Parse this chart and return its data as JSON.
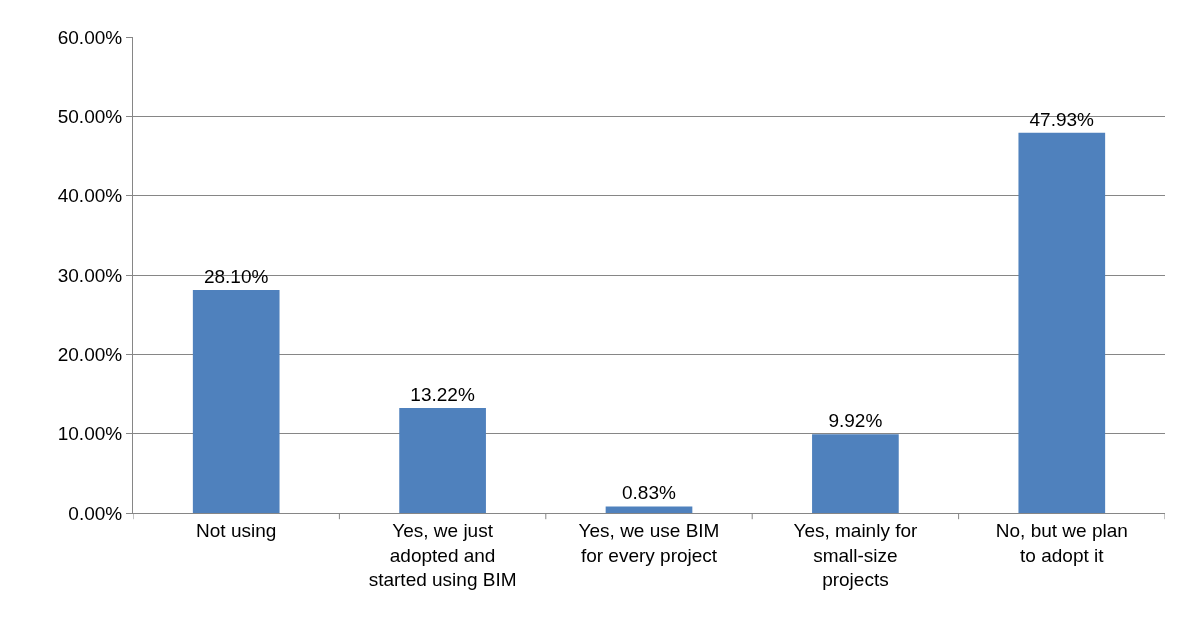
{
  "chart_data": {
    "type": "bar",
    "categories": [
      "Not using",
      "Yes, we just\nadopted and\nstarted using BIM",
      "Yes, we use BIM\nfor every project",
      "Yes, mainly for\nsmall-size\nprojects",
      "No, but we plan\nto adopt it"
    ],
    "values": [
      28.1,
      13.22,
      0.83,
      9.92,
      47.93
    ],
    "value_labels": [
      "28.10%",
      "13.22%",
      "0.83%",
      "9.92%",
      "47.93%"
    ],
    "color": "#4f81bd",
    "ylim": [
      0,
      60
    ],
    "yticks": [
      {
        "value": 0,
        "label": "0.00%"
      },
      {
        "value": 10,
        "label": "10.00%"
      },
      {
        "value": 20,
        "label": "20.00%"
      },
      {
        "value": 30,
        "label": "30.00%"
      },
      {
        "value": 40,
        "label": "40.00%"
      },
      {
        "value": 50,
        "label": "50.00%"
      },
      {
        "value": 60,
        "label": "60.00%"
      }
    ],
    "grid": "y"
  }
}
